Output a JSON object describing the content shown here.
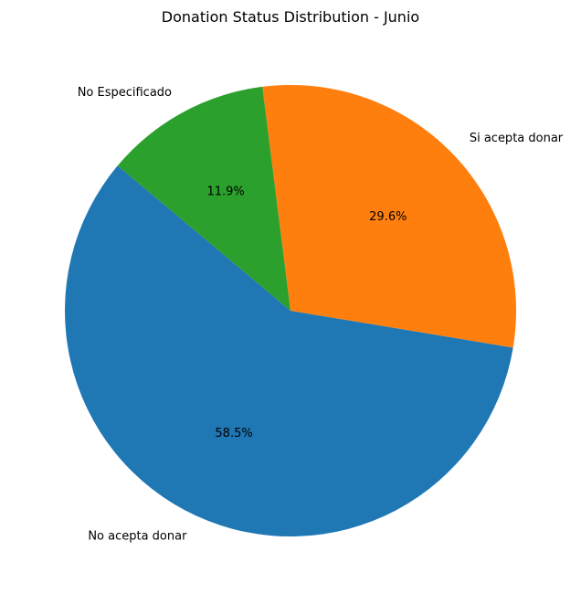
{
  "chart_data": {
    "type": "pie",
    "title": "Donation Status Distribution - Junio",
    "slices": [
      {
        "label": "No acepta donar",
        "value": 58.5,
        "pct_label": "58.5%",
        "color": "#1f77b4"
      },
      {
        "label": "Si acepta donar",
        "value": 29.6,
        "pct_label": "29.6%",
        "color": "#ff7f0e"
      },
      {
        "label": "No Especificado",
        "value": 11.9,
        "pct_label": "11.9%",
        "color": "#2ca02c"
      }
    ],
    "start_angle_deg": 140,
    "direction": "counterclockwise"
  }
}
